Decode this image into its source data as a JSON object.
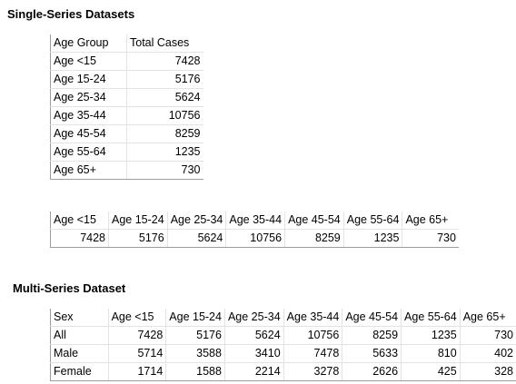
{
  "single_series_heading": "Single-Series Datasets",
  "multi_series_heading": "Multi-Series Dataset",
  "single_vertical": {
    "headers": [
      "Age Group",
      "Total Cases"
    ],
    "rows": [
      [
        "Age <15",
        "7428"
      ],
      [
        "Age 15-24",
        "5176"
      ],
      [
        "Age 25-34",
        "5624"
      ],
      [
        "Age 35-44",
        "10756"
      ],
      [
        "Age 45-54",
        "8259"
      ],
      [
        "Age 55-64",
        "1235"
      ],
      [
        "Age 65+",
        "730"
      ]
    ]
  },
  "single_horizontal": {
    "headers": [
      "Age <15",
      "Age 15-24",
      "Age 25-34",
      "Age 35-44",
      "Age 45-54",
      "Age 55-64",
      "Age 65+"
    ],
    "values": [
      "7428",
      "5176",
      "5624",
      "10756",
      "8259",
      "1235",
      "730"
    ]
  },
  "multi": {
    "headers": [
      "Sex",
      "Age <15",
      "Age 15-24",
      "Age 25-34",
      "Age 35-44",
      "Age 45-54",
      "Age 55-64",
      "Age 65+"
    ],
    "rows": [
      [
        "All",
        "7428",
        "5176",
        "5624",
        "10756",
        "8259",
        "1235",
        "730"
      ],
      [
        "Male",
        "5714",
        "3588",
        "3410",
        "7478",
        "5633",
        "810",
        "402"
      ],
      [
        "Female",
        "1714",
        "1588",
        "2214",
        "3278",
        "2626",
        "425",
        "328"
      ]
    ]
  }
}
